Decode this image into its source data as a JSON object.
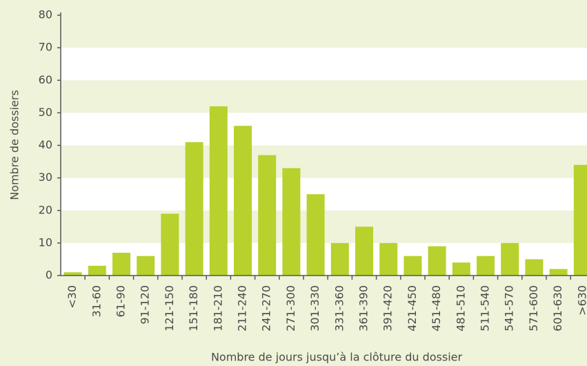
{
  "chart_data": {
    "type": "bar",
    "xlabel": "Nombre de jours jusqu’à la clôture du dossier",
    "ylabel": "Nombre de dossiers",
    "categories": [
      "<30",
      "31-60",
      "61-90",
      "91-120",
      "121-150",
      "151-180",
      "181-210",
      "211-240",
      "241-270",
      "271-300",
      "301-330",
      "331-360",
      "361-390",
      "391-420",
      "421-450",
      "451-480",
      "481-510",
      "511-540",
      "541-570",
      "571-600",
      "601-630",
      ">630"
    ],
    "values": [
      1,
      3,
      7,
      6,
      19,
      41,
      52,
      46,
      37,
      33,
      25,
      10,
      15,
      10,
      6,
      9,
      4,
      6,
      10,
      5,
      2,
      34
    ],
    "color": "#b8d12c",
    "ylim": [
      0,
      80
    ],
    "yticks": [
      0,
      10,
      20,
      30,
      40,
      50,
      60,
      70,
      80
    ],
    "grid": true
  }
}
